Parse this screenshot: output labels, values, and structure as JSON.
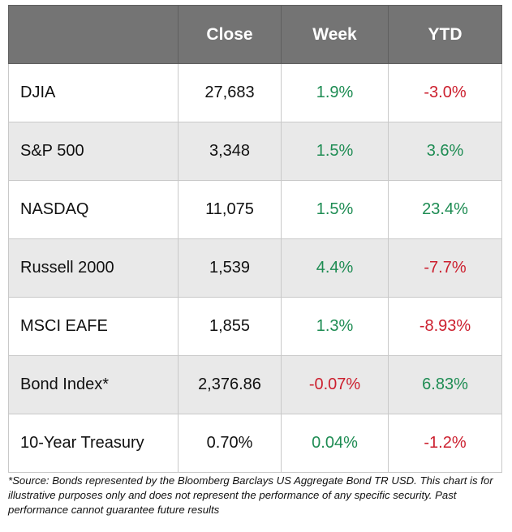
{
  "table": {
    "headers": [
      "",
      "Close",
      "Week",
      "YTD"
    ],
    "rows": [
      {
        "name": "DJIA",
        "close": "27,683",
        "week": "1.9%",
        "ytd": "-3.0%"
      },
      {
        "name": "S&P 500",
        "close": "3,348",
        "week": "1.5%",
        "ytd": "3.6%"
      },
      {
        "name": "NASDAQ",
        "close": "11,075",
        "week": "1.5%",
        "ytd": "23.4%"
      },
      {
        "name": "Russell 2000",
        "close": "1,539",
        "week": "4.4%",
        "ytd": "-7.7%"
      },
      {
        "name": "MSCI EAFE",
        "close": "1,855",
        "week": "1.3%",
        "ytd": "-8.93%"
      },
      {
        "name": "Bond Index*",
        "close": "2,376.86",
        "week": "-0.07%",
        "ytd": "6.83%"
      },
      {
        "name": "10-Year Treasury",
        "close": "0.70%",
        "week": "0.04%",
        "ytd": "-1.2%"
      }
    ]
  },
  "footnote": "*Source: Bonds represented by the Bloomberg Barclays US Aggregate Bond TR USD.  This chart is for illustrative purposes only and does not represent the performance of any specific security. Past performance cannot guarantee future results",
  "colors": {
    "header_bg": "#747474",
    "positive": "#1e8c53",
    "negative": "#cc1f2e",
    "row_alt_bg": "#e9e9e9"
  }
}
